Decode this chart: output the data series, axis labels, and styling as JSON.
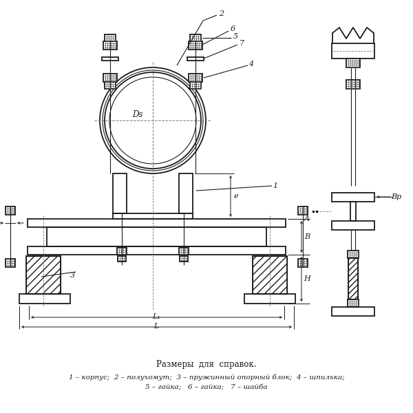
{
  "bg_color": "#ffffff",
  "line_color": "#1a1a1a",
  "dim_color": "#1a1a1a",
  "text_color": "#1a1a1a",
  "caption_title": "Размеры  для  справок.",
  "caption_line1": "1 – корпус;  2 – полухомут;  3 – пружинный опорный блок;  4 – шпилька;",
  "caption_line2": "5 – гайка;   6 – гайка;   7 – шайба"
}
